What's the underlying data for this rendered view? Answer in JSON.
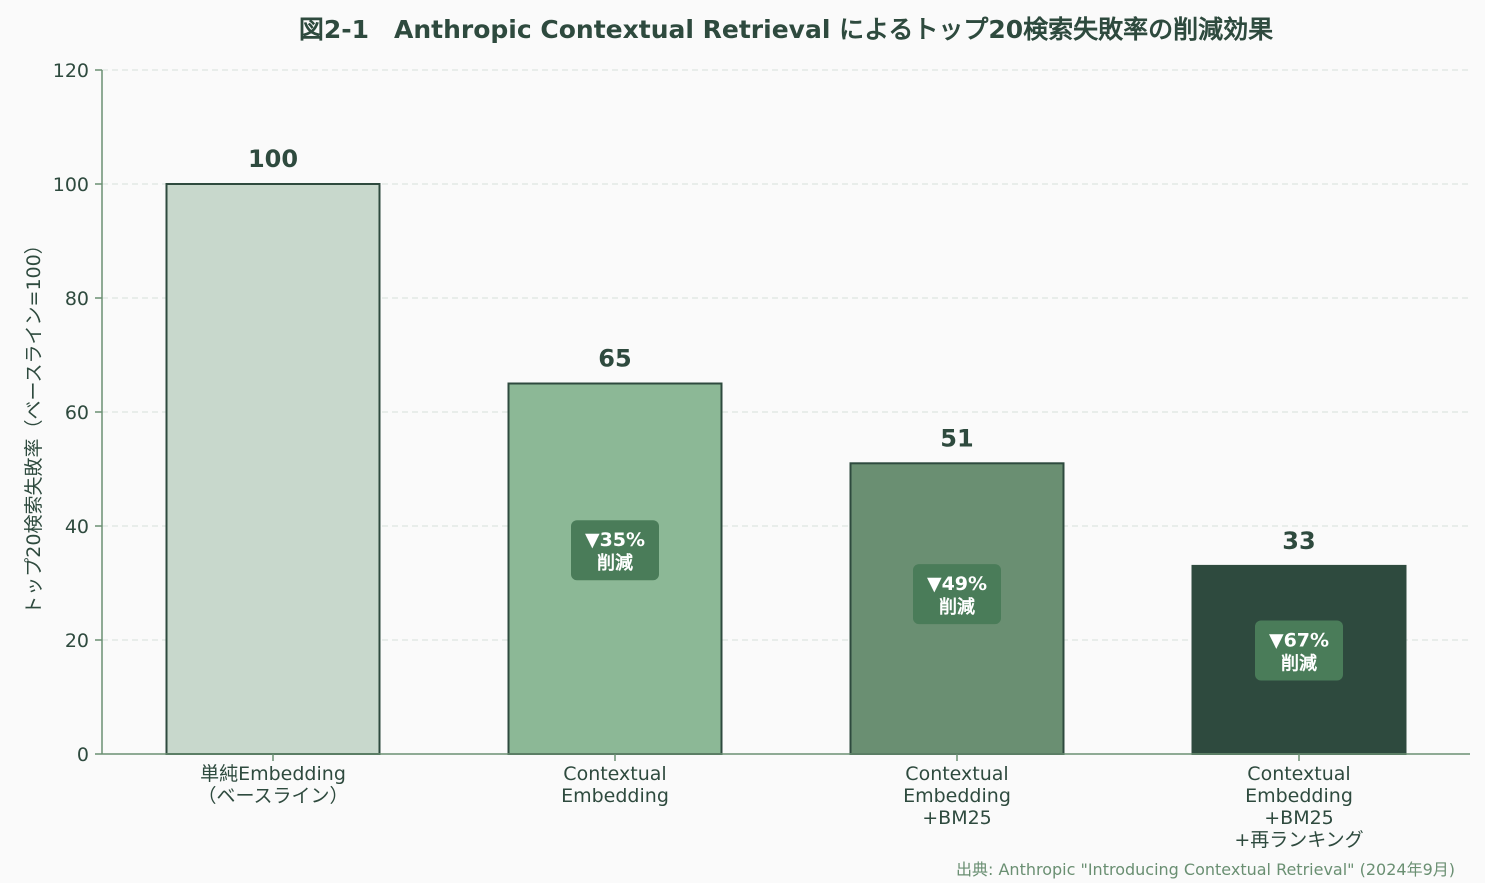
{
  "chart_data": {
    "type": "bar",
    "title": "図2-1　Anthropic Contextual Retrieval によるトップ20検索失敗率の削減効果",
    "xlabel": "",
    "ylabel": "トップ20検索失敗率（ベースライン=100）",
    "ylim": [
      0,
      120
    ],
    "yticks": [
      0,
      20,
      40,
      60,
      80,
      100,
      120
    ],
    "grid": true,
    "categories": [
      [
        "単純Embedding",
        "（ベースライン）"
      ],
      [
        "Contextual",
        "Embedding"
      ],
      [
        "Contextual",
        "Embedding",
        "+BM25"
      ],
      [
        "Contextual",
        "Embedding",
        "+BM25",
        "+再ランキング"
      ]
    ],
    "values": [
      100,
      65,
      51,
      33
    ],
    "data_labels": [
      "100",
      "65",
      "51",
      "33"
    ],
    "reduction_badges": [
      null,
      [
        "▼35%",
        "削減"
      ],
      [
        "▼49%",
        "削減"
      ],
      [
        "▼67%",
        "削減"
      ]
    ],
    "colors": [
      "#c8d8cc",
      "#8cb896",
      "#6a8f72",
      "#2e4a3e"
    ],
    "badge_color": "#4a7c59",
    "source": "出典: Anthropic \"Introducing Contextual Retrieval\" (2024年9月)"
  }
}
